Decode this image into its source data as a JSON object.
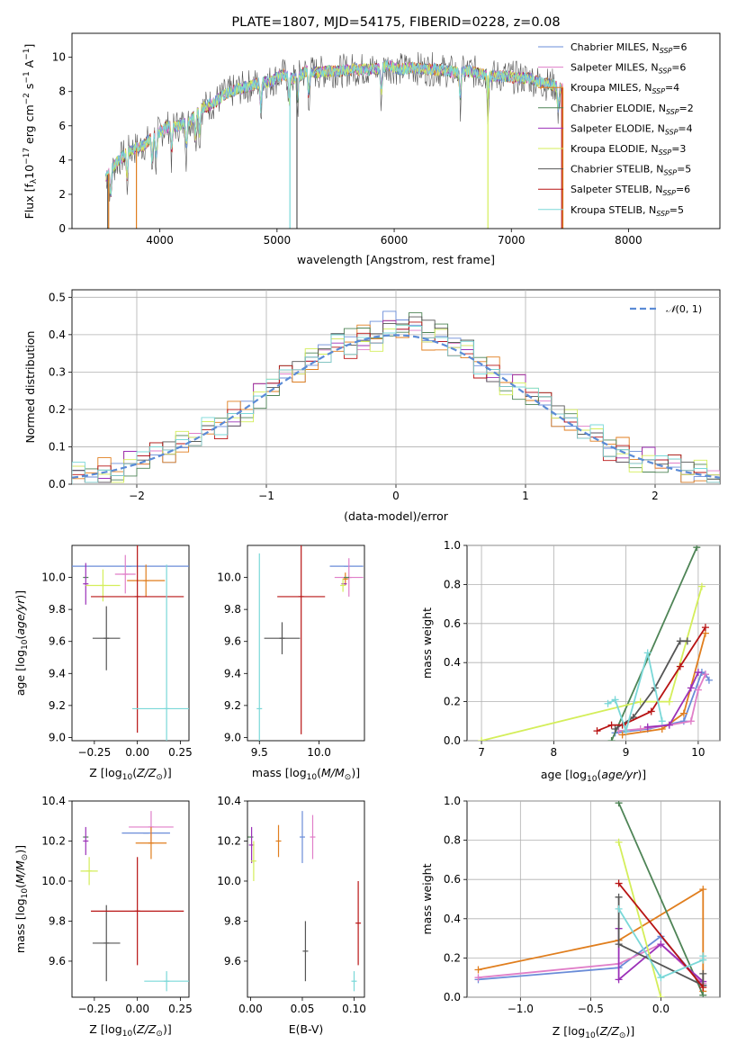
{
  "figure": {
    "title": "PLATE=1807, MJD=54175, FIBERID=0228, z=0.08"
  },
  "series_colors": {
    "Chabrier MILES": "#6a8cd8",
    "Salpeter MILES": "#e07ec8",
    "Kroupa MILES": "#e07e1e",
    "Chabrier ELODIE": "#4e8456",
    "Salpeter ELODIE": "#9b30b8",
    "Kroupa ELODIE": "#d4ee5a",
    "Chabrier STELIB": "#555555",
    "Salpeter STELIB": "#b81414",
    "Kroupa STELIB": "#7ad8d8"
  },
  "chart_data": [
    {
      "id": "spectrum",
      "type": "line",
      "title": "PLATE=1807, MJD=54175, FIBERID=0228, z=0.08",
      "xlabel": "wavelength [Angstrom, rest frame]",
      "ylabel": "Flux [fλ10⁻¹⁷ erg cm⁻² s⁻¹ A⁻¹]",
      "xlim": [
        3250,
        8780
      ],
      "ylim": [
        0,
        11.4
      ],
      "xticks": [
        "4000",
        "5000",
        "6000",
        "7000",
        "8000"
      ],
      "yticks": [
        "0",
        "2",
        "4",
        "6",
        "8",
        "10"
      ],
      "legend_position": "right",
      "legend": [
        {
          "label": "Chabrier MILES, N",
          "sub": "SSP",
          "tail": "=6"
        },
        {
          "label": "Salpeter MILES, N",
          "sub": "SSP",
          "tail": "=6"
        },
        {
          "label": "Kroupa MILES, N",
          "sub": "SSP",
          "tail": "=4"
        },
        {
          "label": "Chabrier ELODIE, N",
          "sub": "SSP",
          "tail": "=2"
        },
        {
          "label": "Salpeter ELODIE, N",
          "sub": "SSP",
          "tail": "=4"
        },
        {
          "label": "Kroupa ELODIE, N",
          "sub": "SSP",
          "tail": "=3"
        },
        {
          "label": "Chabrier STELIB, N",
          "sub": "SSP",
          "tail": "=5"
        },
        {
          "label": "Salpeter STELIB, N",
          "sub": "SSP",
          "tail": "=6"
        },
        {
          "label": "Kroupa STELIB, N",
          "sub": "SSP",
          "tail": "=5"
        }
      ],
      "continuum": [
        [
          3550,
          3.1
        ],
        [
          3650,
          4.0
        ],
        [
          3750,
          4.6
        ],
        [
          3850,
          4.8
        ],
        [
          3950,
          5.4
        ],
        [
          4050,
          5.9
        ],
        [
          4150,
          6.0
        ],
        [
          4250,
          6.2
        ],
        [
          4350,
          7.0
        ],
        [
          4450,
          7.3
        ],
        [
          4550,
          7.8
        ],
        [
          4650,
          8.1
        ],
        [
          4750,
          8.3
        ],
        [
          4850,
          8.5
        ],
        [
          4950,
          8.6
        ],
        [
          5050,
          9.0
        ],
        [
          5150,
          8.7
        ],
        [
          5250,
          9.2
        ],
        [
          5350,
          9.1
        ],
        [
          5450,
          9.2
        ],
        [
          5550,
          9.2
        ],
        [
          5650,
          9.3
        ],
        [
          5750,
          9.3
        ],
        [
          5850,
          9.3
        ],
        [
          5950,
          9.5
        ],
        [
          6050,
          9.3
        ],
        [
          6150,
          9.4
        ],
        [
          6250,
          9.3
        ],
        [
          6350,
          9.3
        ],
        [
          6450,
          9.2
        ],
        [
          6550,
          9.1
        ],
        [
          6650,
          9.2
        ],
        [
          6750,
          9.0
        ],
        [
          6850,
          8.9
        ],
        [
          6950,
          8.9
        ],
        [
          7050,
          8.8
        ],
        [
          7150,
          8.8
        ],
        [
          7250,
          8.5
        ],
        [
          7350,
          8.4
        ],
        [
          7430,
          8.2
        ]
      ],
      "absorption_features_angstrom": [
        3580,
        3720,
        3934,
        3969,
        4101,
        4227,
        4304,
        4340,
        4861,
        5105,
        5175,
        5270,
        5890,
        6563,
        6800,
        7400
      ]
    },
    {
      "id": "residuals",
      "type": "histogram",
      "xlabel": "(data-model)/error",
      "ylabel": "Normed distribution",
      "xlim": [
        -2.5,
        2.5
      ],
      "ylim": [
        0,
        0.52
      ],
      "xticks": [
        "−2",
        "−1",
        "0",
        "1",
        "2"
      ],
      "yticks": [
        "0.0",
        "0.1",
        "0.2",
        "0.3",
        "0.4",
        "0.5"
      ],
      "legend_position": "top-right",
      "reference_curve": {
        "name": "N(0,1)",
        "mean": 0,
        "sigma": 1,
        "color": "#5b8bd6"
      },
      "bin_width": 0.1,
      "bin_start": -2.5,
      "histograms": [
        {
          "series": "Chabrier MILES",
          "jitter": [
            1,
            -2,
            3,
            0,
            -1,
            2,
            -3,
            1,
            0,
            2
          ]
        },
        {
          "series": "Salpeter MILES",
          "jitter": [
            -1,
            2,
            0,
            3,
            -2,
            1,
            0,
            -3,
            2,
            1
          ]
        },
        {
          "series": "Kroupa MILES",
          "jitter": [
            2,
            0,
            -1,
            -2,
            3,
            1,
            -2,
            0,
            3,
            -1
          ]
        },
        {
          "series": "Chabrier ELODIE",
          "jitter": [
            0,
            3,
            -2,
            1,
            0,
            -3,
            2,
            2,
            -1,
            0
          ]
        },
        {
          "series": "Salpeter ELODIE",
          "jitter": [
            -2,
            1,
            2,
            -1,
            1,
            0,
            3,
            -2,
            0,
            2
          ]
        },
        {
          "series": "Kroupa ELODIE",
          "jitter": [
            3,
            -1,
            1,
            2,
            -3,
            2,
            0,
            1,
            -2,
            3
          ]
        },
        {
          "series": "Chabrier STELIB",
          "jitter": [
            1,
            1,
            -3,
            0,
            2,
            -1,
            1,
            3,
            0,
            -2
          ]
        },
        {
          "series": "Salpeter STELIB",
          "jitter": [
            -3,
            0,
            2,
            1,
            -1,
            3,
            -1,
            0,
            1,
            0
          ]
        },
        {
          "series": "Kroupa STELIB",
          "jitter": [
            0,
            -2,
            1,
            3,
            0,
            -1,
            2,
            -1,
            3,
            1
          ]
        }
      ]
    },
    {
      "id": "age-vs-Z",
      "type": "errorbar",
      "xlabel": "Z [log₁₀(Z/Z⊙)]",
      "ylabel": "age  [log₁₀(age/yr)]",
      "xlim": [
        -0.38,
        0.3
      ],
      "ylim": [
        8.98,
        10.2
      ],
      "xticks": [
        -0.25,
        0.0,
        0.25
      ],
      "yticks": [
        9.0,
        9.2,
        9.4,
        9.6,
        9.8,
        10.0
      ],
      "points": [
        {
          "series": "Chabrier MILES",
          "x": -0.05,
          "y": 10.07,
          "xerr": 0.38,
          "yerr": 0.0
        },
        {
          "series": "Salpeter MILES",
          "x": -0.07,
          "y": 10.02,
          "xerr": 0.06,
          "yerr": 0.12
        },
        {
          "series": "Kroupa MILES",
          "x": 0.05,
          "y": 9.98,
          "xerr": 0.11,
          "yerr": 0.1
        },
        {
          "series": "Chabrier ELODIE",
          "x": -0.3,
          "y": 10.0,
          "xerr": 0.0,
          "yerr": 0.0
        },
        {
          "series": "Salpeter ELODIE",
          "x": -0.3,
          "y": 9.96,
          "xerr": 0.0,
          "yerr": 0.13
        },
        {
          "series": "Kroupa ELODIE",
          "x": -0.2,
          "y": 9.95,
          "xerr": 0.1,
          "yerr": 0.1
        },
        {
          "series": "Chabrier STELIB",
          "x": -0.18,
          "y": 9.62,
          "xerr": 0.08,
          "yerr": 0.2
        },
        {
          "series": "Salpeter STELIB",
          "x": 0.0,
          "y": 9.88,
          "xerr": 0.27,
          "yerr": 0.85
        },
        {
          "series": "Kroupa STELIB",
          "x": 0.17,
          "y": 9.18,
          "xerr": 0.2,
          "yerr": 0.9
        }
      ]
    },
    {
      "id": "age-vs-mass",
      "type": "errorbar",
      "xlabel": "mass [log₁₀(M/M⊙)]",
      "ylabel": "",
      "xlim": [
        9.4,
        10.38
      ],
      "ylim": [
        8.98,
        10.2
      ],
      "xticks": [
        9.5,
        10.0
      ],
      "yticks": [
        9.0,
        9.2,
        9.4,
        9.6,
        9.8,
        10.0
      ],
      "points": [
        {
          "series": "Chabrier MILES",
          "x": 10.23,
          "y": 10.07,
          "xerr": 0.14,
          "yerr": 0.0
        },
        {
          "series": "Salpeter MILES",
          "x": 10.25,
          "y": 10.0,
          "xerr": 0.12,
          "yerr": 0.12
        },
        {
          "series": "Kroupa MILES",
          "x": 10.22,
          "y": 9.99,
          "xerr": 0.01,
          "yerr": 0.04
        },
        {
          "series": "Chabrier ELODIE",
          "x": 10.23,
          "y": 10.0,
          "xerr": 0.0,
          "yerr": 0.0
        },
        {
          "series": "Salpeter ELODIE",
          "x": 10.21,
          "y": 9.96,
          "xerr": 0.0,
          "yerr": 0.0
        },
        {
          "series": "Kroupa ELODIE",
          "x": 10.2,
          "y": 9.95,
          "xerr": 0.0,
          "yerr": 0.04
        },
        {
          "series": "Chabrier STELIB",
          "x": 9.69,
          "y": 9.62,
          "xerr": 0.15,
          "yerr": 0.1
        },
        {
          "series": "Salpeter STELIB",
          "x": 9.85,
          "y": 9.88,
          "xerr": 0.2,
          "yerr": 0.86
        },
        {
          "series": "Kroupa STELIB",
          "x": 9.5,
          "y": 9.18,
          "xerr": 0.0,
          "yerr": 0.97
        }
      ]
    },
    {
      "id": "massweight-vs-age",
      "type": "line",
      "xlabel": "age  [log₁₀(age/yr)]",
      "ylabel": "mass weight",
      "xlim": [
        6.8,
        10.3
      ],
      "ylim": [
        0.0,
        1.0
      ],
      "xticks": [
        7,
        8,
        9,
        10
      ],
      "yticks": [
        "0.0",
        "0.2",
        "0.4",
        "0.6",
        "0.8",
        "1.0"
      ],
      "series": [
        {
          "name": "Chabrier MILES",
          "x": [
            8.85,
            9.3,
            9.8,
            10.05,
            10.1,
            10.15
          ],
          "y": [
            0.04,
            0.06,
            0.1,
            0.35,
            0.34,
            0.31
          ]
        },
        {
          "name": "Salpeter MILES",
          "x": [
            8.9,
            9.2,
            9.6,
            9.9,
            10.0,
            10.1
          ],
          "y": [
            0.05,
            0.06,
            0.08,
            0.1,
            0.26,
            0.34
          ]
        },
        {
          "name": "Kroupa MILES",
          "x": [
            8.95,
            9.5,
            9.8,
            10.1
          ],
          "y": [
            0.03,
            0.06,
            0.14,
            0.55
          ]
        },
        {
          "name": "Chabrier ELODIE",
          "x": [
            8.8,
            9.98
          ],
          "y": [
            0.0,
            0.99
          ]
        },
        {
          "name": "Salpeter ELODIE",
          "x": [
            9.3,
            9.6,
            9.9,
            10.0
          ],
          "y": [
            0.07,
            0.08,
            0.27,
            0.35
          ]
        },
        {
          "name": "Kroupa ELODIE",
          "x": [
            7.0,
            9.2,
            9.6,
            10.05
          ],
          "y": [
            0.0,
            0.2,
            0.2,
            0.79
          ]
        },
        {
          "name": "Chabrier STELIB",
          "x": [
            8.85,
            9.1,
            9.4,
            9.75,
            9.85
          ],
          "y": [
            0.06,
            0.12,
            0.27,
            0.51,
            0.51
          ]
        },
        {
          "name": "Salpeter STELIB",
          "x": [
            8.6,
            8.8,
            8.95,
            9.35,
            9.75,
            10.1
          ],
          "y": [
            0.05,
            0.08,
            0.08,
            0.15,
            0.38,
            0.58
          ]
        },
        {
          "name": "Kroupa STELIB",
          "x": [
            8.75,
            8.85,
            9.0,
            9.3,
            9.5
          ],
          "y": [
            0.19,
            0.21,
            0.05,
            0.45,
            0.1
          ]
        }
      ]
    },
    {
      "id": "mass-vs-Z",
      "type": "errorbar",
      "xlabel": "Z [log₁₀(Z/Z⊙)]",
      "ylabel": "mass [log₁₀(M/M⊙)]",
      "xlim": [
        -0.38,
        0.3
      ],
      "ylim": [
        9.42,
        10.4
      ],
      "xticks": [
        -0.25,
        0.0,
        0.25
      ],
      "yticks": [
        9.6,
        9.8,
        10.0,
        10.2,
        10.4
      ],
      "points": [
        {
          "series": "Chabrier MILES",
          "x": 0.05,
          "y": 10.24,
          "xerr": 0.14,
          "yerr": 0.0
        },
        {
          "series": "Salpeter MILES",
          "x": 0.08,
          "y": 10.27,
          "xerr": 0.13,
          "yerr": 0.08
        },
        {
          "series": "Kroupa MILES",
          "x": 0.08,
          "y": 10.19,
          "xerr": 0.09,
          "yerr": 0.08
        },
        {
          "series": "Chabrier ELODIE",
          "x": -0.3,
          "y": 10.22,
          "xerr": 0.0,
          "yerr": 0.0
        },
        {
          "series": "Salpeter ELODIE",
          "x": -0.3,
          "y": 10.2,
          "xerr": 0.0,
          "yerr": 0.07
        },
        {
          "series": "Kroupa ELODIE",
          "x": -0.28,
          "y": 10.05,
          "xerr": 0.05,
          "yerr": 0.07
        },
        {
          "series": "Chabrier STELIB",
          "x": -0.18,
          "y": 9.69,
          "xerr": 0.08,
          "yerr": 0.19
        },
        {
          "series": "Salpeter STELIB",
          "x": 0.0,
          "y": 9.85,
          "xerr": 0.27,
          "yerr": 0.27
        },
        {
          "series": "Kroupa STELIB",
          "x": 0.17,
          "y": 9.5,
          "xerr": 0.13,
          "yerr": 0.05
        }
      ]
    },
    {
      "id": "mass-vs-EBV",
      "type": "errorbar",
      "xlabel": "E(B-V)",
      "ylabel": "",
      "xlim": [
        -0.003,
        0.11
      ],
      "ylim": [
        9.42,
        10.4
      ],
      "xticks": [
        "0.00",
        "0.05",
        "0.10"
      ],
      "yticks": [
        9.6,
        9.8,
        10.0,
        10.2,
        10.4
      ],
      "points": [
        {
          "series": "Chabrier MILES",
          "x": 0.05,
          "y": 10.22,
          "xerr": 0.0,
          "yerr": 0.13
        },
        {
          "series": "Salpeter MILES",
          "x": 0.06,
          "y": 10.22,
          "xerr": 0.0,
          "yerr": 0.11
        },
        {
          "series": "Kroupa MILES",
          "x": 0.027,
          "y": 10.2,
          "xerr": 0.0,
          "yerr": 0.08
        },
        {
          "series": "Chabrier ELODIE",
          "x": 0.0,
          "y": 10.22,
          "xerr": 0.0,
          "yerr": 0.0
        },
        {
          "series": "Salpeter ELODIE",
          "x": 0.001,
          "y": 10.18,
          "xerr": 0.0,
          "yerr": 0.09
        },
        {
          "series": "Kroupa ELODIE",
          "x": 0.003,
          "y": 10.1,
          "xerr": 0.0,
          "yerr": 0.1
        },
        {
          "series": "Chabrier STELIB",
          "x": 0.053,
          "y": 9.65,
          "xerr": 0.0,
          "yerr": 0.15
        },
        {
          "series": "Salpeter STELIB",
          "x": 0.104,
          "y": 9.79,
          "xerr": 0.0,
          "yerr": 0.21
        },
        {
          "series": "Kroupa STELIB",
          "x": 0.1,
          "y": 9.5,
          "xerr": 0.0,
          "yerr": 0.05
        }
      ]
    },
    {
      "id": "massweight-vs-Z",
      "type": "line",
      "xlabel": "Z [log₁₀(Z/Z⊙)]",
      "ylabel": "mass weight",
      "xlim": [
        -1.38,
        0.42
      ],
      "ylim": [
        0.0,
        1.0
      ],
      "xticks": [
        "−1.0",
        "−0.5",
        "0.0"
      ],
      "yticks": [
        "0.0",
        "0.2",
        "0.4",
        "0.6",
        "0.8",
        "1.0"
      ],
      "series": [
        {
          "name": "Chabrier MILES",
          "x": [
            -1.3,
            -0.3,
            0.0,
            0.3
          ],
          "y": [
            0.09,
            0.15,
            0.31,
            0.06
          ]
        },
        {
          "name": "Salpeter MILES",
          "x": [
            -1.3,
            -0.3,
            0.0,
            0.3
          ],
          "y": [
            0.1,
            0.17,
            0.27,
            0.07
          ]
        },
        {
          "name": "Kroupa MILES",
          "x": [
            -1.3,
            -0.3,
            0.3,
            0.3
          ],
          "y": [
            0.14,
            0.29,
            0.55,
            0.03
          ]
        },
        {
          "name": "Chabrier ELODIE",
          "x": [
            -0.3,
            0.3
          ],
          "y": [
            0.99,
            0.01
          ]
        },
        {
          "name": "Salpeter ELODIE",
          "x": [
            -0.3,
            -0.3,
            0.0,
            0.3
          ],
          "y": [
            0.35,
            0.09,
            0.27,
            0.08
          ]
        },
        {
          "name": "Kroupa ELODIE",
          "x": [
            -0.3,
            0.0
          ],
          "y": [
            0.79,
            0.0
          ]
        },
        {
          "name": "Chabrier STELIB",
          "x": [
            -0.3,
            -0.3,
            0.3,
            0.3
          ],
          "y": [
            0.51,
            0.27,
            0.06,
            0.12
          ]
        },
        {
          "name": "Salpeter STELIB",
          "x": [
            -0.3,
            0.3
          ],
          "y": [
            0.58,
            0.05
          ]
        },
        {
          "name": "Kroupa STELIB",
          "x": [
            -0.3,
            0.0,
            0.3,
            0.3
          ],
          "y": [
            0.45,
            0.1,
            0.19,
            0.21
          ]
        }
      ]
    }
  ]
}
